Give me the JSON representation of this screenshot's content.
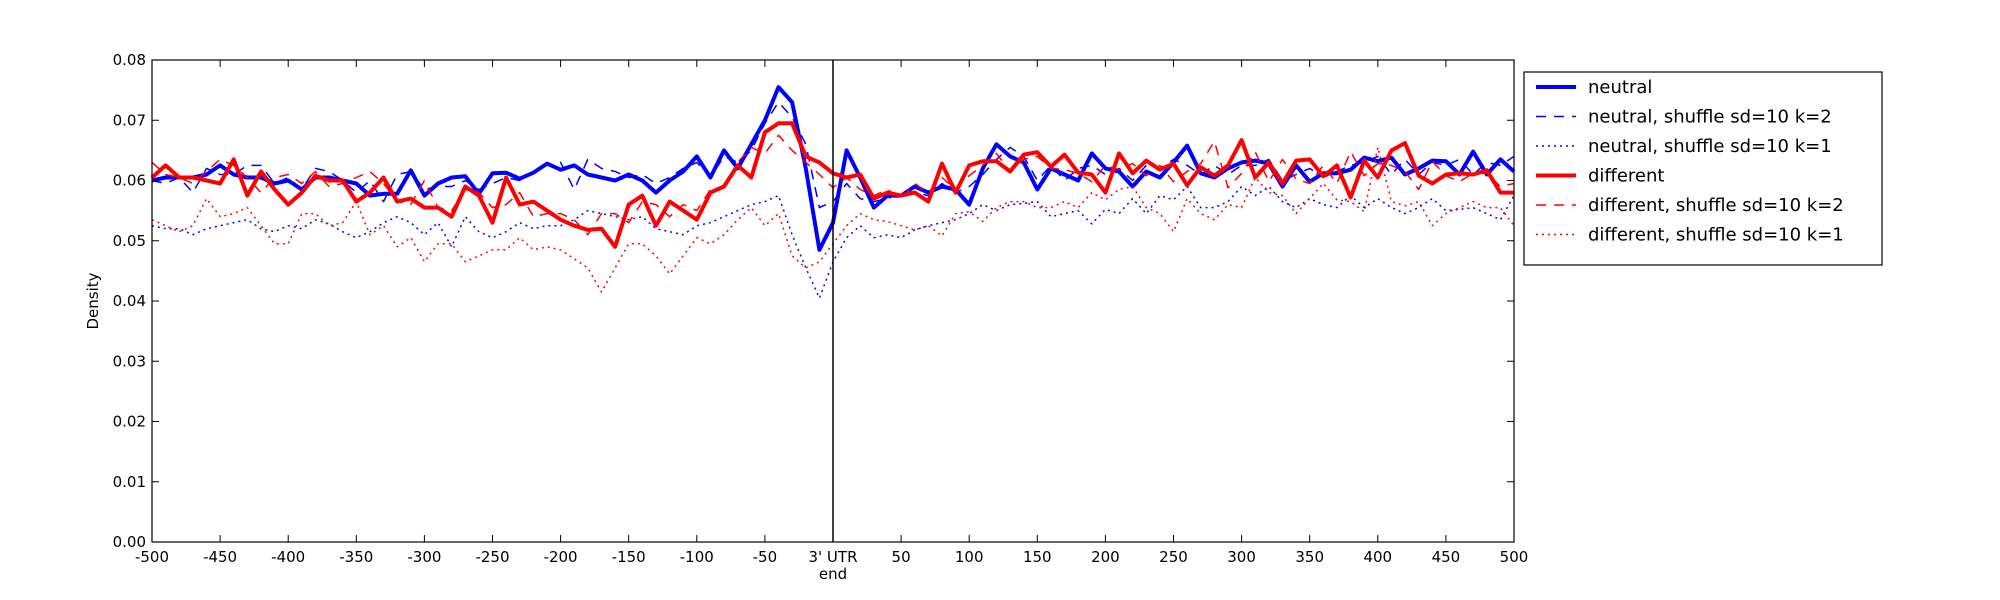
{
  "chart_data": {
    "type": "line",
    "xlabel": "",
    "ylabel": "Density",
    "xlim": [
      -500,
      500
    ],
    "ylim": [
      0,
      0.08
    ],
    "grid": false,
    "legend_placement": "outside-right-top",
    "divider_x": 0,
    "x_ticks": [
      -500,
      -450,
      -400,
      -350,
      -300,
      -250,
      -200,
      -150,
      -100,
      -50,
      0,
      50,
      100,
      150,
      200,
      250,
      300,
      350,
      400,
      450,
      500
    ],
    "x_tick_labels": [
      "-500",
      "-450",
      "-400",
      "-350",
      "-300",
      "-250",
      "-200",
      "-150",
      "-100",
      "-50",
      "3' UTR",
      "50",
      "100",
      "150",
      "200",
      "250",
      "300",
      "350",
      "400",
      "450",
      "500"
    ],
    "x_tick_sublabel": "end",
    "y_ticks": [
      0.0,
      0.01,
      0.02,
      0.03,
      0.04,
      0.05,
      0.06,
      0.07,
      0.08
    ],
    "y_tick_labels": [
      "0.00",
      "0.01",
      "0.02",
      "0.03",
      "0.04",
      "0.05",
      "0.06",
      "0.07",
      "0.08"
    ],
    "x": [
      -500,
      -490,
      -480,
      -470,
      -460,
      -450,
      -440,
      -430,
      -420,
      -410,
      -400,
      -390,
      -380,
      -370,
      -360,
      -350,
      -340,
      -330,
      -320,
      -310,
      -300,
      -290,
      -280,
      -270,
      -260,
      -250,
      -240,
      -230,
      -220,
      -210,
      -200,
      -190,
      -180,
      -170,
      -160,
      -150,
      -140,
      -130,
      -120,
      -110,
      -100,
      -90,
      -80,
      -70,
      -60,
      -50,
      -40,
      -30,
      -20,
      -10,
      0,
      10,
      20,
      30,
      40,
      50,
      60,
      70,
      80,
      90,
      100,
      110,
      120,
      130,
      140,
      150,
      160,
      170,
      180,
      190,
      200,
      210,
      220,
      230,
      240,
      250,
      260,
      270,
      280,
      290,
      300,
      310,
      320,
      330,
      340,
      350,
      360,
      370,
      380,
      390,
      400,
      410,
      420,
      430,
      440,
      450,
      460,
      470,
      480,
      490,
      500
    ],
    "series": [
      {
        "name": "neutral",
        "color": "#0000ff",
        "style": "solid",
        "width": 4,
        "values": [
          0.06,
          0.0605,
          0.0605,
          0.0605,
          0.061,
          0.0625,
          0.061,
          0.0605,
          0.0605,
          0.0595,
          0.06,
          0.0585,
          0.0605,
          0.0605,
          0.06,
          0.0595,
          0.0575,
          0.0578,
          0.0578,
          0.0617,
          0.0575,
          0.0595,
          0.0605,
          0.0607,
          0.0578,
          0.0612,
          0.0613,
          0.0603,
          0.0613,
          0.0628,
          0.0618,
          0.0625,
          0.061,
          0.0605,
          0.06,
          0.061,
          0.06,
          0.058,
          0.06,
          0.0615,
          0.064,
          0.0605,
          0.065,
          0.062,
          0.066,
          0.07,
          0.0755,
          0.073,
          0.062,
          0.0485,
          0.053,
          0.065,
          0.0605,
          0.0555,
          0.0575,
          0.0575,
          0.059,
          0.058,
          0.059,
          0.0585,
          0.056,
          0.062,
          0.066,
          0.064,
          0.063,
          0.0585,
          0.062,
          0.061,
          0.06,
          0.0645,
          0.062,
          0.0615,
          0.059,
          0.0615,
          0.0605,
          0.063,
          0.0658,
          0.0612,
          0.0605,
          0.062,
          0.063,
          0.0633,
          0.0628,
          0.059,
          0.0625,
          0.0598,
          0.0612,
          0.0612,
          0.0618,
          0.0638,
          0.0632,
          0.0638,
          0.061,
          0.062,
          0.0633,
          0.0632,
          0.061,
          0.0648,
          0.061,
          0.0635,
          0.0615
        ]
      },
      {
        "name": "neutral, shuffle sd=10 k=2",
        "color": "#0000ff",
        "style": "dashed",
        "width": 1.5,
        "values": [
          0.06,
          0.0595,
          0.0605,
          0.058,
          0.062,
          0.061,
          0.061,
          0.0625,
          0.0625,
          0.0595,
          0.0605,
          0.0585,
          0.062,
          0.0615,
          0.06,
          0.058,
          0.06,
          0.0565,
          0.061,
          0.0615,
          0.0585,
          0.059,
          0.059,
          0.06,
          0.0585,
          0.0595,
          0.0605,
          0.06,
          0.0615,
          0.0625,
          0.063,
          0.0585,
          0.0635,
          0.062,
          0.0615,
          0.0605,
          0.061,
          0.0595,
          0.0605,
          0.062,
          0.063,
          0.0605,
          0.064,
          0.063,
          0.065,
          0.0695,
          0.073,
          0.0705,
          0.066,
          0.0555,
          0.0565,
          0.0595,
          0.057,
          0.0565,
          0.057,
          0.058,
          0.058,
          0.0575,
          0.0595,
          0.058,
          0.059,
          0.061,
          0.0635,
          0.0655,
          0.064,
          0.06,
          0.0625,
          0.06,
          0.062,
          0.0625,
          0.061,
          0.062,
          0.06,
          0.0625,
          0.062,
          0.0635,
          0.0625,
          0.061,
          0.0625,
          0.061,
          0.0625,
          0.0625,
          0.0635,
          0.06,
          0.061,
          0.062,
          0.0605,
          0.0615,
          0.0625,
          0.063,
          0.064,
          0.061,
          0.0635,
          0.061,
          0.063,
          0.0625,
          0.0635,
          0.061,
          0.063,
          0.0625,
          0.064
        ]
      },
      {
        "name": "neutral, shuffle sd=10 k=1",
        "color": "#0000ff",
        "style": "dotted",
        "width": 1.5,
        "values": [
          0.0525,
          0.052,
          0.052,
          0.051,
          0.052,
          0.0525,
          0.053,
          0.0535,
          0.052,
          0.0515,
          0.0525,
          0.052,
          0.0535,
          0.0528,
          0.0515,
          0.0505,
          0.0515,
          0.053,
          0.054,
          0.053,
          0.051,
          0.053,
          0.049,
          0.054,
          0.0515,
          0.0505,
          0.0515,
          0.053,
          0.052,
          0.0525,
          0.0525,
          0.0535,
          0.055,
          0.0545,
          0.054,
          0.0535,
          0.054,
          0.052,
          0.0515,
          0.051,
          0.0525,
          0.053,
          0.054,
          0.055,
          0.056,
          0.0565,
          0.0575,
          0.051,
          0.0455,
          0.0405,
          0.0465,
          0.0505,
          0.0525,
          0.0505,
          0.051,
          0.0505,
          0.0518,
          0.0525,
          0.053,
          0.0535,
          0.0545,
          0.056,
          0.055,
          0.056,
          0.0562,
          0.0565,
          0.054,
          0.0545,
          0.055,
          0.0528,
          0.0552,
          0.0545,
          0.057,
          0.0545,
          0.0575,
          0.0568,
          0.059,
          0.0555,
          0.0555,
          0.0565,
          0.059,
          0.0575,
          0.059,
          0.0565,
          0.0555,
          0.057,
          0.056,
          0.0555,
          0.0575,
          0.0555,
          0.057,
          0.0555,
          0.0545,
          0.0555,
          0.057,
          0.055,
          0.0552,
          0.0555,
          0.0545,
          0.0535,
          0.0575
        ]
      },
      {
        "name": "different",
        "color": "#ff0000",
        "style": "solid",
        "width": 4,
        "values": [
          0.0605,
          0.0625,
          0.0605,
          0.0605,
          0.06,
          0.0595,
          0.0635,
          0.0575,
          0.0615,
          0.0585,
          0.056,
          0.058,
          0.0608,
          0.06,
          0.06,
          0.0565,
          0.058,
          0.0605,
          0.0565,
          0.057,
          0.0555,
          0.0555,
          0.054,
          0.059,
          0.0575,
          0.053,
          0.0605,
          0.056,
          0.0565,
          0.055,
          0.0535,
          0.0525,
          0.0518,
          0.052,
          0.049,
          0.056,
          0.0575,
          0.0525,
          0.0565,
          0.055,
          0.0535,
          0.058,
          0.059,
          0.0625,
          0.0605,
          0.068,
          0.0695,
          0.0695,
          0.064,
          0.063,
          0.0612,
          0.0605,
          0.061,
          0.057,
          0.058,
          0.0575,
          0.058,
          0.0565,
          0.0628,
          0.058,
          0.0625,
          0.0632,
          0.0632,
          0.0615,
          0.0643,
          0.0647,
          0.0623,
          0.0643,
          0.0613,
          0.061,
          0.058,
          0.0645,
          0.0612,
          0.0633,
          0.0618,
          0.0628,
          0.0592,
          0.0622,
          0.0608,
          0.0625,
          0.0667,
          0.0605,
          0.063,
          0.0595,
          0.0633,
          0.0635,
          0.0607,
          0.0625,
          0.0572,
          0.0633,
          0.0605,
          0.065,
          0.0662,
          0.0608,
          0.0595,
          0.061,
          0.0612,
          0.061,
          0.0617,
          0.058,
          0.058
        ]
      },
      {
        "name": "different, shuffle sd=10 k=2",
        "color": "#ff0000",
        "style": "dashed",
        "width": 1.5,
        "values": [
          0.063,
          0.061,
          0.0605,
          0.0595,
          0.0615,
          0.0635,
          0.0625,
          0.0605,
          0.058,
          0.0605,
          0.061,
          0.0595,
          0.0615,
          0.059,
          0.0595,
          0.0605,
          0.0615,
          0.0595,
          0.0565,
          0.056,
          0.06,
          0.0555,
          0.055,
          0.0585,
          0.058,
          0.0555,
          0.056,
          0.058,
          0.054,
          0.0545,
          0.0545,
          0.0535,
          0.051,
          0.0545,
          0.0545,
          0.053,
          0.0565,
          0.056,
          0.054,
          0.056,
          0.055,
          0.0585,
          0.059,
          0.063,
          0.0655,
          0.0645,
          0.0675,
          0.065,
          0.063,
          0.061,
          0.0588,
          0.0605,
          0.0585,
          0.0575,
          0.0585,
          0.057,
          0.0595,
          0.058,
          0.0605,
          0.0585,
          0.0608,
          0.0625,
          0.0645,
          0.0615,
          0.0635,
          0.064,
          0.062,
          0.0618,
          0.0612,
          0.0598,
          0.0625,
          0.0618,
          0.0628,
          0.0608,
          0.0625,
          0.0598,
          0.0615,
          0.0628,
          0.0665,
          0.0588,
          0.0612,
          0.0648,
          0.0598,
          0.0635,
          0.0602,
          0.0595,
          0.0625,
          0.0595,
          0.0648,
          0.0608,
          0.0628,
          0.0625,
          0.0615,
          0.0585,
          0.0632,
          0.0608,
          0.0598,
          0.0612,
          0.0612,
          0.059,
          0.0595
        ]
      },
      {
        "name": "different, shuffle sd=10 k=1",
        "color": "#ff0000",
        "style": "dotted",
        "width": 1.5,
        "values": [
          0.0535,
          0.0525,
          0.0515,
          0.0525,
          0.057,
          0.054,
          0.0545,
          0.0555,
          0.0525,
          0.0495,
          0.0495,
          0.0545,
          0.0545,
          0.0525,
          0.053,
          0.0565,
          0.051,
          0.0525,
          0.049,
          0.0505,
          0.0465,
          0.0495,
          0.0495,
          0.0465,
          0.0475,
          0.0485,
          0.0485,
          0.0505,
          0.0485,
          0.049,
          0.0485,
          0.047,
          0.0455,
          0.0415,
          0.0455,
          0.0495,
          0.0495,
          0.0475,
          0.0445,
          0.0475,
          0.0505,
          0.0495,
          0.051,
          0.0535,
          0.0555,
          0.0525,
          0.0545,
          0.0475,
          0.0455,
          0.0465,
          0.0495,
          0.0525,
          0.0545,
          0.0535,
          0.0532,
          0.0525,
          0.0518,
          0.0525,
          0.0508,
          0.0545,
          0.0548,
          0.0532,
          0.0555,
          0.0565,
          0.0565,
          0.0555,
          0.0555,
          0.0565,
          0.0555,
          0.058,
          0.0568,
          0.0585,
          0.059,
          0.0555,
          0.0545,
          0.0515,
          0.057,
          0.0545,
          0.0535,
          0.056,
          0.0555,
          0.0605,
          0.058,
          0.0575,
          0.0545,
          0.057,
          0.0595,
          0.0568,
          0.0565,
          0.0548,
          0.0655,
          0.0565,
          0.0558,
          0.0565,
          0.0525,
          0.0545,
          0.0555,
          0.0565,
          0.0555,
          0.0555,
          0.0525
        ]
      }
    ]
  }
}
